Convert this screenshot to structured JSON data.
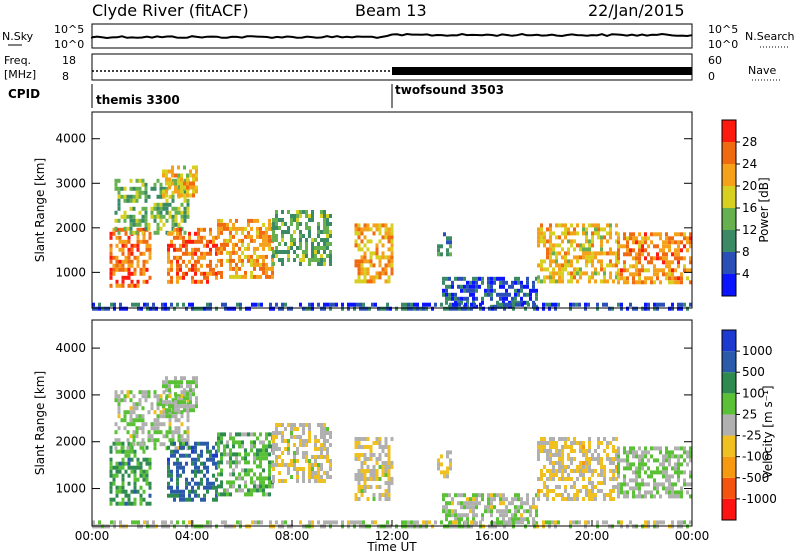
{
  "header": {
    "station": "Clyde River (fitACF)",
    "beam": "Beam 13",
    "date": "22/Jan/2015"
  },
  "aux_panels": {
    "nsky": {
      "label": "N.Sky",
      "ticks": [
        "10^5",
        "10^0"
      ]
    },
    "nsearch": {
      "label": "N.Search",
      "ticks": [
        "10^5",
        "10^0"
      ]
    },
    "freq": {
      "label_top": "Freq.",
      "label_unit": "[MHz]",
      "ticks": [
        "18",
        "8"
      ]
    },
    "nave": {
      "label": "Nave",
      "ticks": [
        "60",
        "0"
      ]
    },
    "cpid": {
      "label": "CPID",
      "modes": [
        {
          "name": "themis 3300",
          "start_hour": 0
        },
        {
          "name": "twofsound 3503",
          "start_hour": 12
        }
      ]
    }
  },
  "chart_data": [
    {
      "type": "heatmap",
      "title": "",
      "xlabel": "Time UT",
      "ylabel": "Slant Range [km]",
      "colorbar_label": "Power [dB]",
      "x_ticks": [
        "00:00",
        "04:00",
        "08:00",
        "12:00",
        "16:00",
        "20:00",
        "00:00"
      ],
      "xlim_hours": [
        0,
        24
      ],
      "y_ticks": [
        1000,
        2000,
        3000,
        4000
      ],
      "ylim": [
        200,
        4600
      ],
      "colorbar_ticks": [
        "4",
        "8",
        "12",
        "16",
        "20",
        "24",
        "28"
      ],
      "colorbar_range": [
        0,
        32
      ],
      "colors": [
        "#0a14ff",
        "#2a50b8",
        "#3a8a66",
        "#66b050",
        "#d8d020",
        "#f5a21a",
        "#f06a12",
        "#ff1a10"
      ],
      "regions": [
        {
          "t": [
            0.7,
            2.3
          ],
          "r": [
            700,
            2000
          ],
          "power": 26
        },
        {
          "t": [
            0.9,
            3.8
          ],
          "r": [
            1900,
            3100
          ],
          "power": 14
        },
        {
          "t": [
            2.8,
            4.2
          ],
          "r": [
            2700,
            3400
          ],
          "power": 20
        },
        {
          "t": [
            3.0,
            5.0
          ],
          "r": [
            800,
            2000
          ],
          "power": 25
        },
        {
          "t": [
            5.0,
            7.2
          ],
          "r": [
            900,
            2200
          ],
          "power": 23
        },
        {
          "t": [
            7.2,
            9.6
          ],
          "r": [
            1200,
            2400
          ],
          "power": 13
        },
        {
          "t": [
            10.5,
            12.0
          ],
          "r": [
            800,
            2100
          ],
          "power": 22
        },
        {
          "t": [
            13.8,
            14.4
          ],
          "r": [
            1300,
            1900
          ],
          "power": 10
        },
        {
          "t": [
            14.0,
            17.8
          ],
          "r": [
            250,
            900
          ],
          "power": 6
        },
        {
          "t": [
            17.8,
            21.0
          ],
          "r": [
            800,
            2100
          ],
          "power": 20
        },
        {
          "t": [
            21.0,
            24.0
          ],
          "r": [
            800,
            1900
          ],
          "power": 24
        },
        {
          "t": [
            0.0,
            24.0
          ],
          "r": [
            220,
            320
          ],
          "power": 6
        }
      ]
    },
    {
      "type": "heatmap",
      "title": "",
      "xlabel": "Time UT",
      "ylabel": "Slant Range [km]",
      "colorbar_label": "Velocity [m s⁻¹]",
      "x_ticks": [
        "00:00",
        "04:00",
        "08:00",
        "12:00",
        "16:00",
        "20:00",
        "00:00"
      ],
      "xlim_hours": [
        0,
        24
      ],
      "y_ticks": [
        1000,
        2000,
        3000,
        4000
      ],
      "ylim": [
        200,
        4600
      ],
      "colorbar_ticks": [
        "1000",
        "500",
        "100",
        "25",
        "-25",
        "-100",
        "-500",
        "-1000"
      ],
      "colorbar_range": [
        -1200,
        1200
      ],
      "colors": [
        "#ff1212",
        "#f5540e",
        "#f59a10",
        "#f0c020",
        "#b0b0b0",
        "#5ac036",
        "#2e8a4e",
        "#2c5aaa",
        "#1c3ad0"
      ],
      "regions": [
        {
          "t": [
            0.7,
            2.3
          ],
          "r": [
            700,
            2000
          ],
          "velocity": 450
        },
        {
          "t": [
            0.9,
            3.8
          ],
          "r": [
            1900,
            3100
          ],
          "velocity": 80
        },
        {
          "t": [
            2.8,
            4.2
          ],
          "r": [
            2700,
            3400
          ],
          "velocity": 120
        },
        {
          "t": [
            3.0,
            5.0
          ],
          "r": [
            800,
            2000
          ],
          "velocity": 700
        },
        {
          "t": [
            5.0,
            7.2
          ],
          "r": [
            900,
            2200
          ],
          "velocity": 300
        },
        {
          "t": [
            7.2,
            9.6
          ],
          "r": [
            1200,
            2400
          ],
          "velocity": -60
        },
        {
          "t": [
            10.5,
            12.0
          ],
          "r": [
            800,
            2100
          ],
          "velocity": -80
        },
        {
          "t": [
            13.8,
            14.4
          ],
          "r": [
            1300,
            1900
          ],
          "velocity": -150
        },
        {
          "t": [
            14.0,
            17.8
          ],
          "r": [
            250,
            900
          ],
          "velocity": 60
        },
        {
          "t": [
            17.8,
            21.0
          ],
          "r": [
            800,
            2100
          ],
          "velocity": -160
        },
        {
          "t": [
            21.0,
            24.0
          ],
          "r": [
            800,
            1900
          ],
          "velocity": 150
        },
        {
          "t": [
            0.0,
            24.0
          ],
          "r": [
            220,
            320
          ],
          "velocity": 40
        }
      ]
    }
  ]
}
